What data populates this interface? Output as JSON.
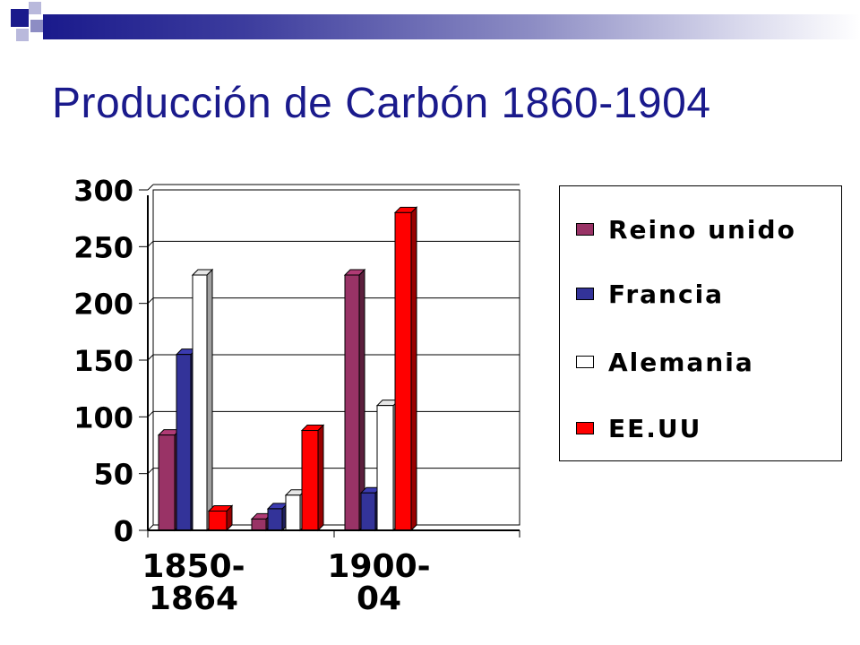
{
  "slide": {
    "title": "Producción de Carbón 1860-1904"
  },
  "colors": {
    "banner_dark": "#1a1a8c",
    "title_color": "#1a1a8c"
  },
  "chart_data": {
    "type": "bar",
    "categories": [
      "1850-\n1864",
      "1900-\n04",
      ""
    ],
    "series": [
      {
        "name": "Reino unido",
        "color": "#993366",
        "values": [
          84,
          225,
          null
        ]
      },
      {
        "name": "Francia",
        "color": "#333399",
        "values": [
          155,
          33,
          null
        ]
      },
      {
        "name": "Alemania",
        "color": "#ffffff",
        "values": [
          225,
          110,
          null
        ]
      },
      {
        "name": "EE.UU",
        "color": "#ff0000",
        "values": [
          17,
          280,
          null
        ]
      }
    ],
    "extra_bars": [
      {
        "series": "Reino unido",
        "value": 10
      },
      {
        "series": "Francia",
        "value": 19
      },
      {
        "series": "Alemania",
        "value": 31
      },
      {
        "series": "EE.UU",
        "value": 88
      }
    ],
    "yticks": [
      "0",
      "50",
      "100",
      "150",
      "200",
      "250",
      "300"
    ],
    "ylim": [
      0,
      300
    ],
    "grid": true,
    "legend": "right",
    "legend_items": [
      "Reino unido",
      "Francia",
      "Alemania",
      "EE.UU"
    ]
  }
}
